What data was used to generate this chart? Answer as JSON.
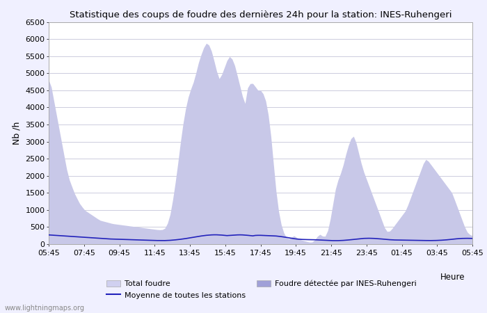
{
  "title": "Statistique des coups de foudre des dernières 24h pour la station: INES-Ruhengeri",
  "ylabel": "Nb /h",
  "xlabel_right": "Heure",
  "watermark": "www.lightningmaps.org",
  "ylim": [
    0,
    6500
  ],
  "yticks": [
    0,
    500,
    1000,
    1500,
    2000,
    2500,
    3000,
    3500,
    4000,
    4500,
    5000,
    5500,
    6000,
    6500
  ],
  "xtick_labels": [
    "05:45",
    "07:45",
    "09:45",
    "11:45",
    "13:45",
    "15:45",
    "17:45",
    "19:45",
    "21:45",
    "23:45",
    "01:45",
    "03:45",
    "05:45"
  ],
  "bg_color": "#f0f0ff",
  "plot_bg_color": "#ffffff",
  "grid_color": "#ccccdd",
  "fill_color": "#c8c8e8",
  "line_color": "#2222bb",
  "legend_total": "Total foudre",
  "legend_moyenne": "Moyenne de toutes les stations",
  "legend_detected": "Foudre détectée par INES-Ruhengeri",
  "total_foudre": [
    4800,
    4600,
    4200,
    3800,
    3400,
    3000,
    2600,
    2200,
    1900,
    1700,
    1500,
    1350,
    1200,
    1100,
    1000,
    950,
    900,
    850,
    800,
    750,
    700,
    680,
    660,
    640,
    620,
    600,
    590,
    580,
    570,
    560,
    550,
    540,
    530,
    520,
    510,
    500,
    490,
    480,
    470,
    460,
    450,
    440,
    430,
    420,
    420,
    430,
    500,
    700,
    1000,
    1500,
    2000,
    2600,
    3200,
    3700,
    4100,
    4400,
    4600,
    4800,
    5100,
    5400,
    5600,
    5800,
    5900,
    5800,
    5600,
    5300,
    5000,
    4800,
    5000,
    5200,
    5400,
    5500,
    5400,
    5200,
    4900,
    4600,
    4300,
    4100,
    4600,
    4700,
    4700,
    4600,
    4500,
    4500,
    4400,
    4200,
    3800,
    3200,
    2400,
    1600,
    1000,
    600,
    350,
    200,
    150,
    200,
    250,
    200,
    150,
    120,
    100,
    80,
    60,
    50,
    100,
    200,
    300,
    250,
    200,
    300,
    600,
    1000,
    1500,
    1800,
    2000,
    2200,
    2500,
    2800,
    3000,
    3200,
    3100,
    2800,
    2500,
    2200,
    2000,
    1800,
    1600,
    1400,
    1200,
    1000,
    800,
    600,
    400,
    350,
    400,
    500,
    600,
    700,
    800,
    900,
    1000,
    1200,
    1400,
    1600,
    1800,
    2000,
    2200,
    2400,
    2500,
    2400,
    2300,
    2200,
    2100,
    2000,
    1900,
    1800,
    1700,
    1600,
    1500,
    1300,
    1100,
    900,
    700,
    500,
    350,
    280,
    250
  ],
  "moyenne": [
    270,
    265,
    260,
    255,
    250,
    245,
    240,
    235,
    230,
    225,
    220,
    215,
    210,
    205,
    200,
    195,
    190,
    185,
    180,
    175,
    170,
    165,
    160,
    155,
    150,
    148,
    145,
    143,
    140,
    138,
    135,
    133,
    130,
    128,
    125,
    123,
    120,
    118,
    115,
    113,
    110,
    108,
    106,
    105,
    104,
    105,
    108,
    112,
    118,
    125,
    133,
    142,
    152,
    163,
    175,
    188,
    200,
    213,
    226,
    238,
    248,
    258,
    265,
    270,
    273,
    273,
    270,
    265,
    258,
    250,
    255,
    260,
    265,
    270,
    272,
    270,
    265,
    258,
    250,
    242,
    255,
    258,
    258,
    255,
    252,
    250,
    247,
    243,
    238,
    230,
    220,
    210,
    198,
    185,
    172,
    160,
    150,
    143,
    138,
    135,
    133,
    132,
    130,
    128,
    125,
    122,
    118,
    114,
    110,
    106,
    103,
    102,
    103,
    106,
    110,
    115,
    122,
    130,
    138,
    147,
    156,
    163,
    168,
    171,
    172,
    170,
    167,
    162,
    156,
    150,
    143,
    136,
    130,
    125,
    122,
    120,
    119,
    118,
    117,
    116,
    115,
    113,
    111,
    110,
    108,
    107,
    106,
    105,
    105,
    106,
    108,
    111,
    115,
    120,
    126,
    133,
    141,
    150,
    157,
    163,
    167,
    169,
    170,
    169,
    167
  ],
  "n_points": 165
}
